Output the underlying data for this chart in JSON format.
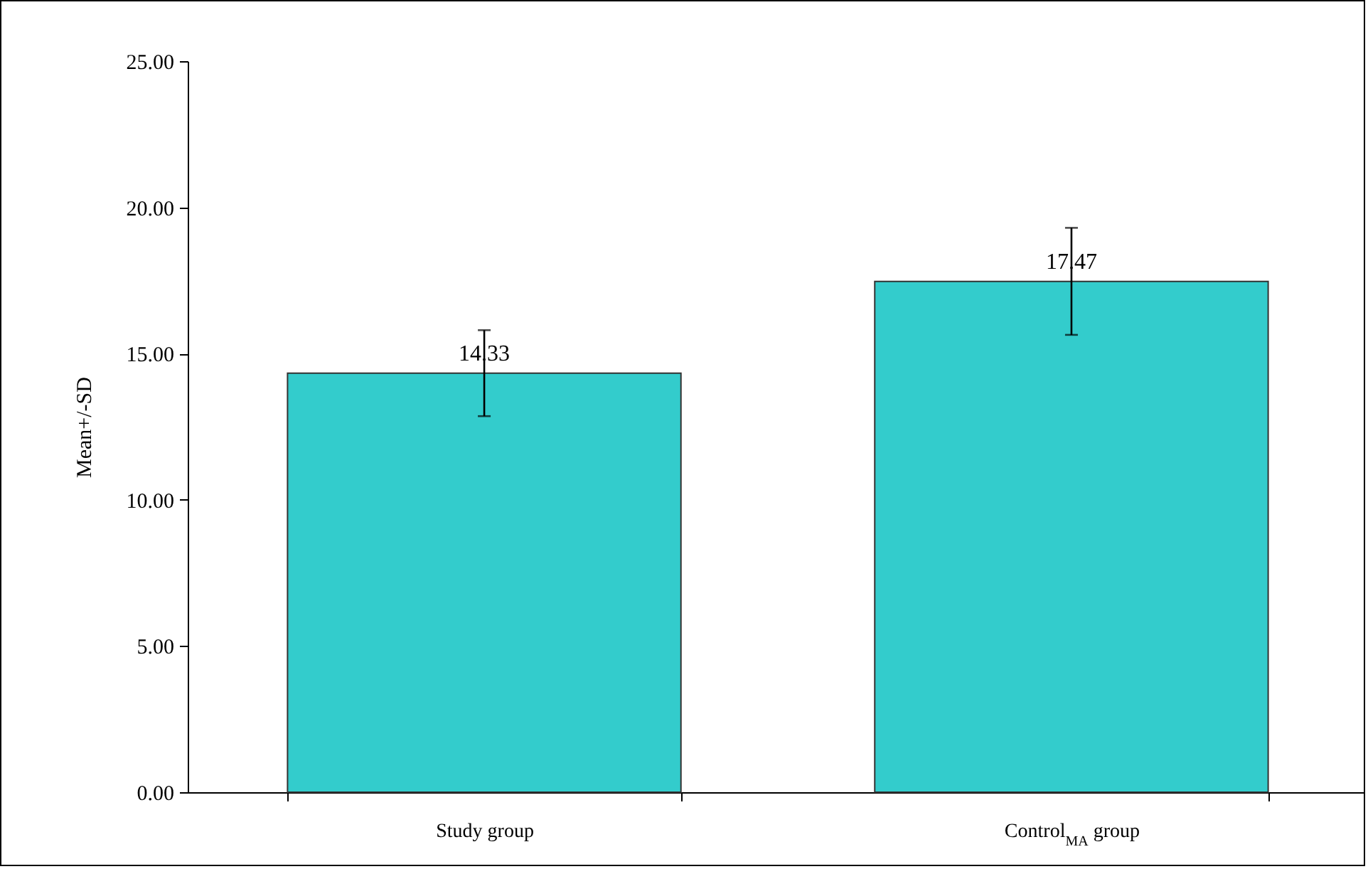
{
  "chart_data": {
    "type": "bar",
    "ylabel": "Mean+/-SD",
    "categories": [
      "Study group",
      "Control$_{MA}$ group"
    ],
    "values": [
      14.33,
      17.47
    ],
    "errors": [
      1.47,
      1.83
    ],
    "color": "#33cccc",
    "data_labels": true,
    "ylim": [
      0,
      25
    ],
    "yticks": [
      {
        "value": 0,
        "label": "0.00"
      },
      {
        "value": 5,
        "label": "5.00"
      },
      {
        "value": 10,
        "label": "10.00"
      },
      {
        "value": 15,
        "label": "15.00"
      },
      {
        "value": 20,
        "label": "20.00"
      },
      {
        "value": 25,
        "label": "25.00"
      }
    ],
    "grid": false
  }
}
